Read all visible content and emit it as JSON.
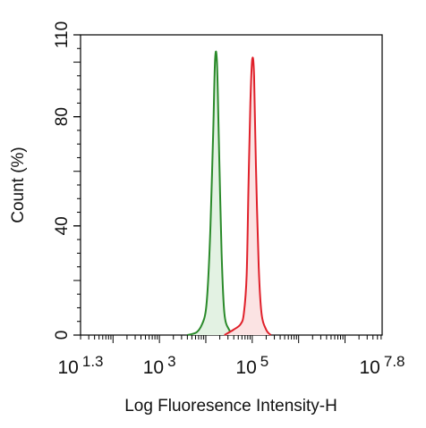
{
  "chart_data": {
    "type": "area",
    "title": "",
    "xlabel": "Log Fluoresence Intensity-H",
    "ylabel": "Count  (%)",
    "x_scale": "log10",
    "xlim": [
      1.3,
      7.8
    ],
    "ylim": [
      0,
      110
    ],
    "x_tick_labels": [
      {
        "base": "10",
        "exp": "1.3",
        "value": 1.3
      },
      {
        "base": "10",
        "exp": "3",
        "value": 3
      },
      {
        "base": "10",
        "exp": "5",
        "value": 5
      },
      {
        "base": "10",
        "exp": "7.8",
        "value": 7.8
      }
    ],
    "y_ticks": [
      0,
      40,
      80,
      110
    ],
    "y_tick_labels": [
      "0",
      "40",
      "80",
      "110"
    ],
    "grid": false,
    "legend": "none",
    "series": [
      {
        "color": "#2a8a2a",
        "fill": "#e3f2e3",
        "x": [
          3.6,
          3.8,
          3.92,
          4.0,
          4.05,
          4.1,
          4.16,
          4.2,
          4.24,
          4.28,
          4.34,
          4.4,
          4.5,
          4.6
        ],
        "y": [
          0,
          1,
          4,
          9,
          20,
          40,
          75,
          101,
          100,
          72,
          30,
          8,
          2,
          0
        ]
      },
      {
        "color": "#e0202a",
        "fill": "#fbe3e3",
        "x": [
          4.4,
          4.6,
          4.75,
          4.82,
          4.88,
          4.92,
          4.96,
          5.0,
          5.04,
          5.08,
          5.14,
          5.2,
          5.3,
          5.4
        ],
        "y": [
          0,
          2,
          4,
          8,
          22,
          55,
          85,
          101,
          95,
          62,
          25,
          8,
          2,
          0
        ]
      }
    ]
  }
}
